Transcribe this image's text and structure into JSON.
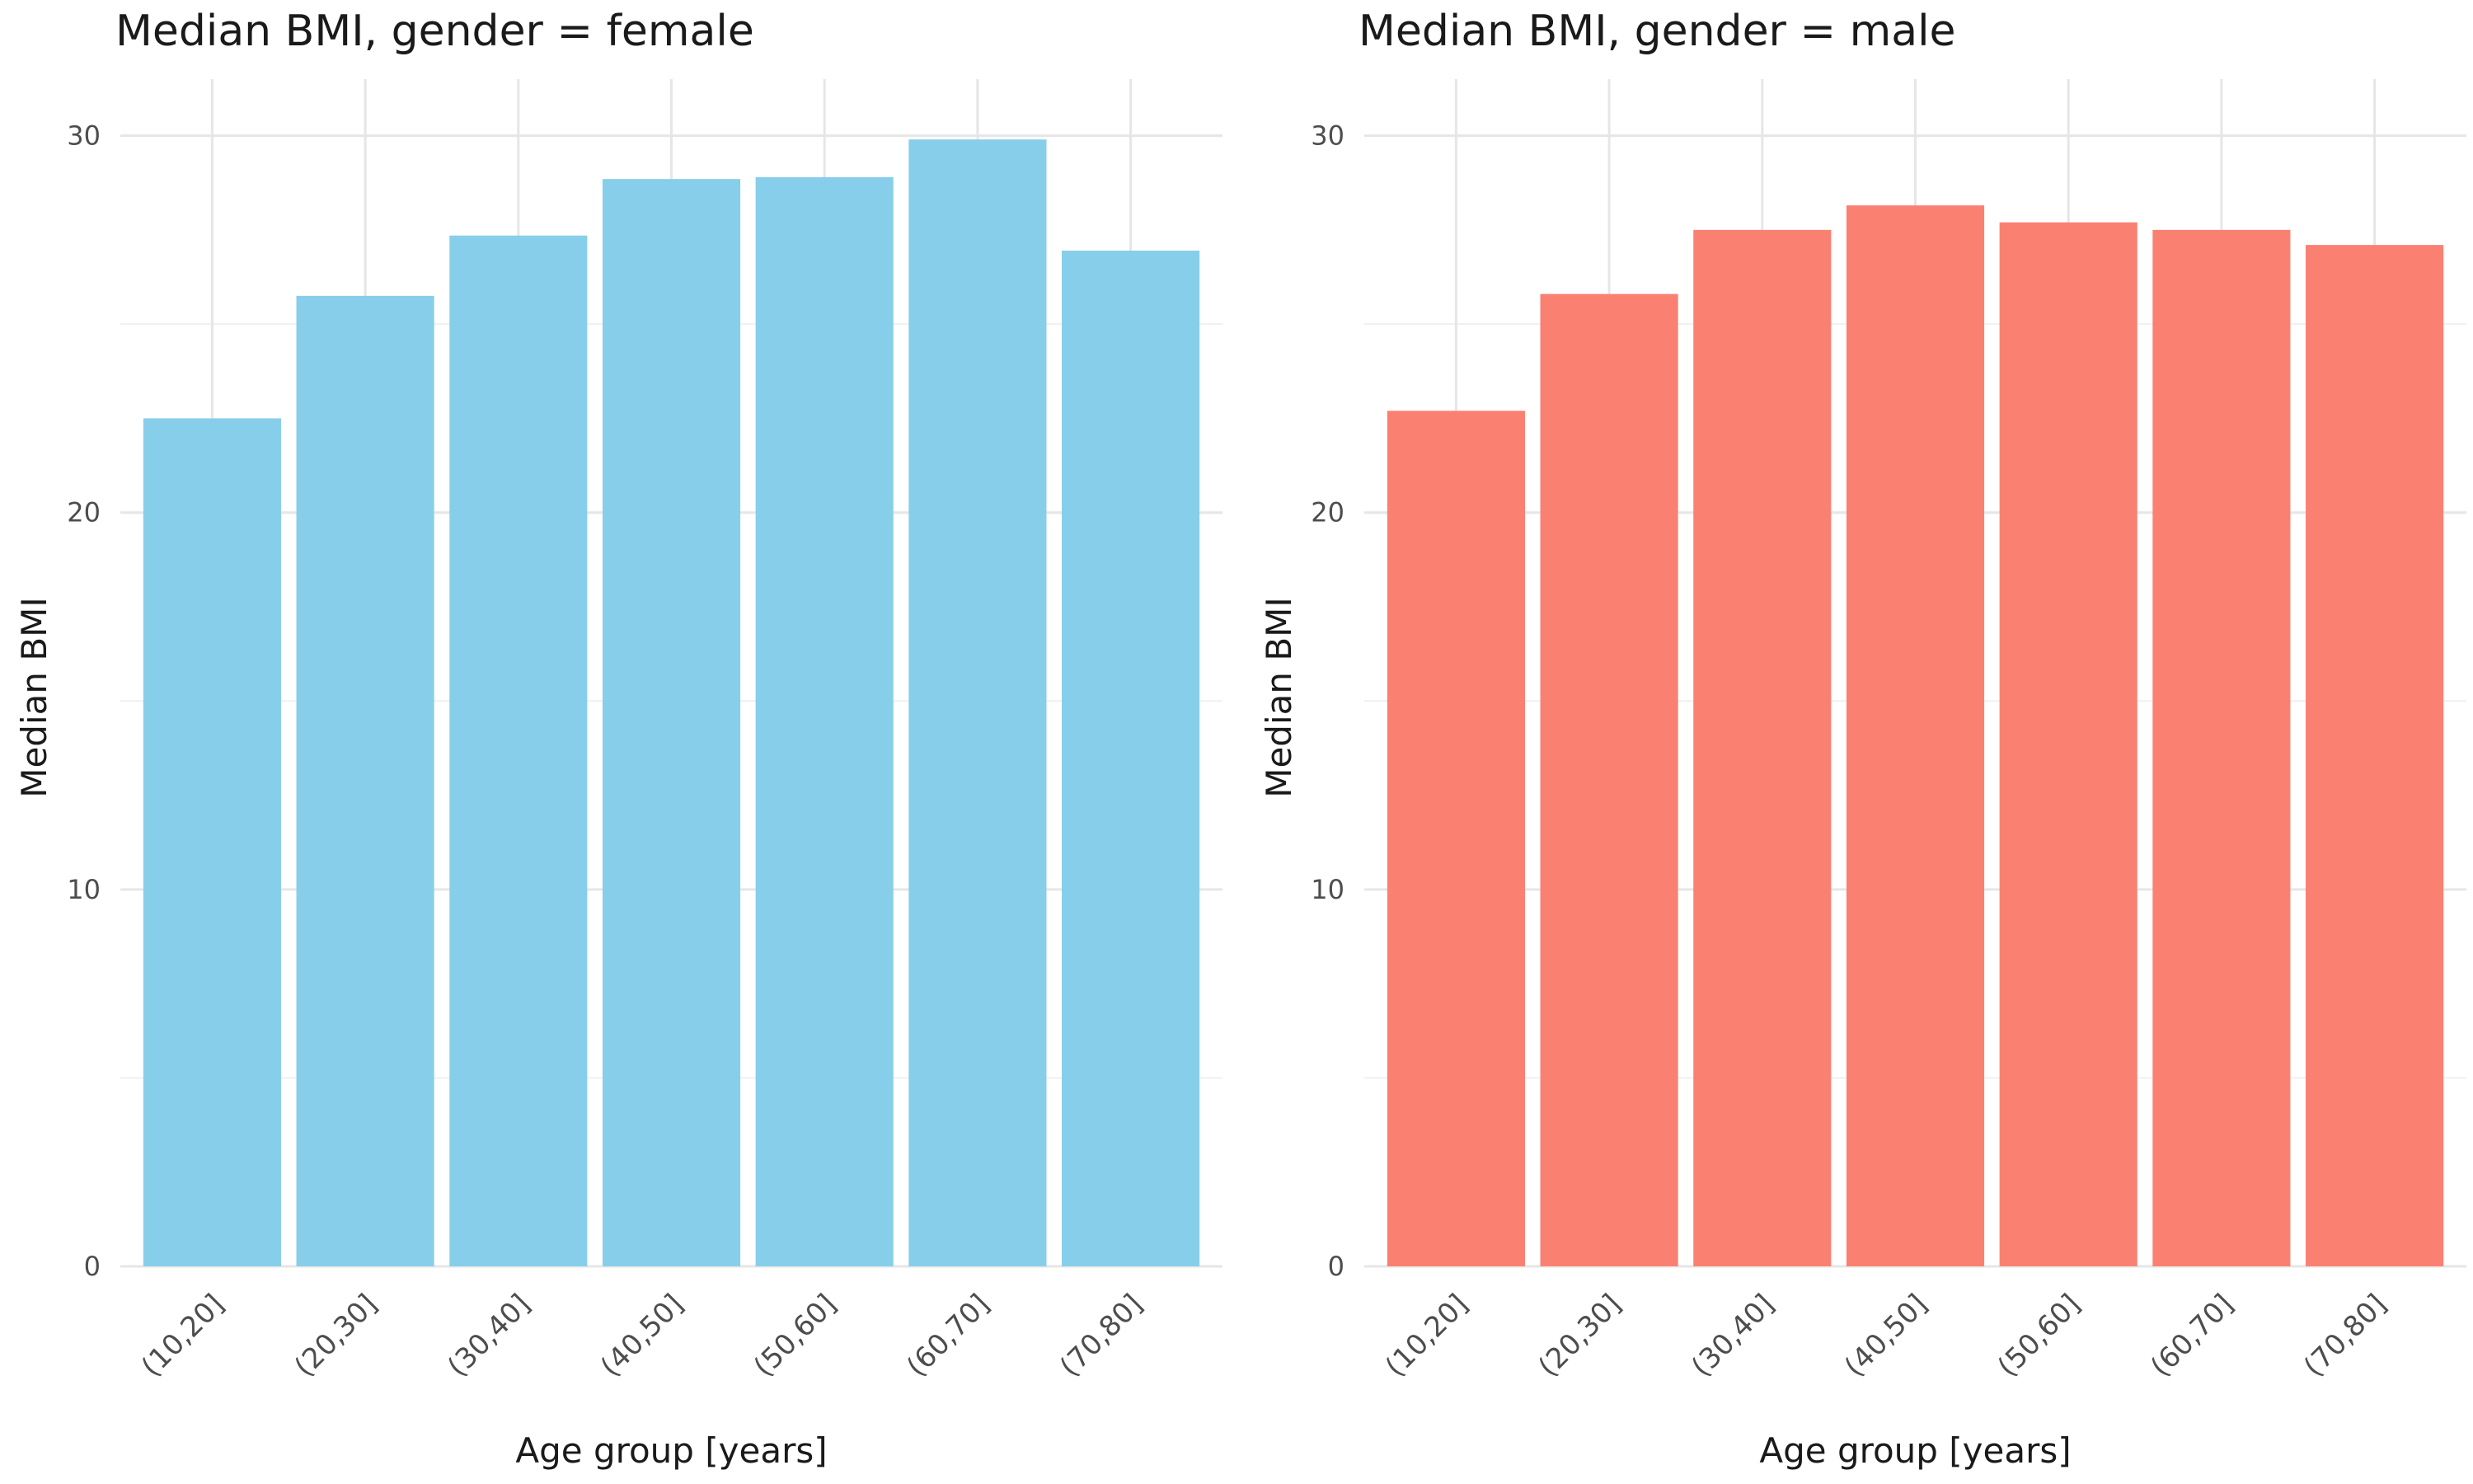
{
  "chart_data": [
    {
      "type": "bar",
      "title": "Median BMI, gender = female",
      "xlabel": "Age group [years]",
      "ylabel": "Median BMI",
      "categories": [
        "(10,20]",
        "(20,30]",
        "(30,40]",
        "(40,50]",
        "(50,60]",
        "(60,70]",
        "(70,80]"
      ],
      "values": [
        22.5,
        25.75,
        27.35,
        28.85,
        28.9,
        29.9,
        26.95
      ],
      "ylim": [
        0,
        30
      ],
      "yticks": [
        0,
        10,
        20,
        30
      ],
      "grid": true,
      "bar_color": "#87CEEB"
    },
    {
      "type": "bar",
      "title": "Median BMI, gender = male",
      "xlabel": "Age group [years]",
      "ylabel": "Median BMI",
      "categories": [
        "(10,20]",
        "(20,30]",
        "(30,40]",
        "(40,50]",
        "(50,60]",
        "(60,70]",
        "(70,80]"
      ],
      "values": [
        22.7,
        25.8,
        27.5,
        28.15,
        27.7,
        27.5,
        27.1
      ],
      "ylim": [
        0,
        30
      ],
      "yticks": [
        0,
        10,
        20,
        30
      ],
      "grid": true,
      "bar_color": "#FA8072"
    }
  ]
}
